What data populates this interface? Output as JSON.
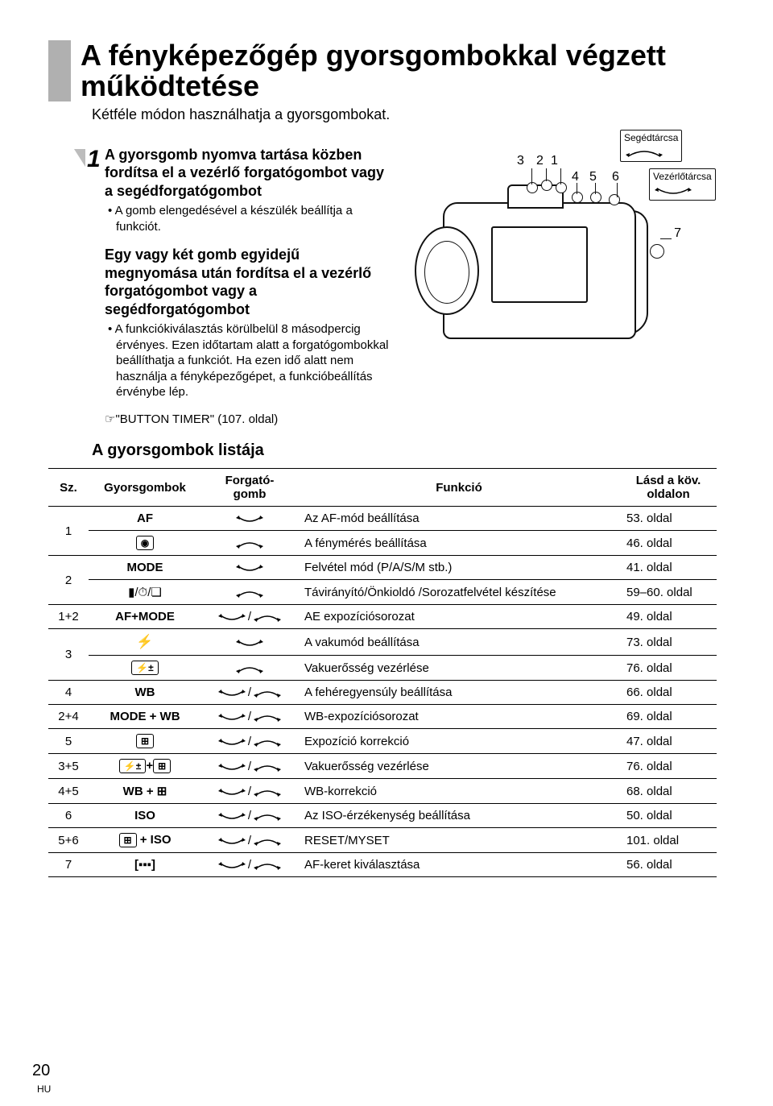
{
  "page": {
    "number": "20",
    "lang": "HU"
  },
  "title": "A fényképezőgép gyorsgombokkal végzett működtetése",
  "subtitle": "Kétféle módon használhatja a gyorsgombokat.",
  "step": {
    "number": "1",
    "h1": "A gyorsgomb nyomva tartása közben fordítsa el a vezérlő forgatógombot vagy a segédforgatógombot",
    "b1": "A gomb elengedésével a készülék beállítja a funkciót.",
    "h2": "Egy vagy két gomb egyidejű megnyomása után fordítsa el a vezérlő forgatógombot vagy a segédforgatógombot",
    "b2": "A funkciókiválasztás körülbelül 8 másodpercig érvényes. Ezen időtartam alatt a forgatógombokkal beállíthatja a funkciót. Ha ezen idő alatt nem használja a fényképezőgépet, a funkcióbeállítás érvénybe lép.",
    "ref": "☞\"BUTTON TIMER\" (107. oldal)"
  },
  "diagram": {
    "callouts": {
      "c1": "1",
      "c2": "2",
      "c3": "3",
      "c4": "4",
      "c5": "5",
      "c6": "6",
      "c7": "7"
    },
    "dial1_label": "Segédtárcsa",
    "dial2_label": "Vezérlőtárcsa"
  },
  "list_title": "A gyorsgombok listája",
  "table": {
    "headers": {
      "sz": "Sz.",
      "btn": "Gyorsgombok",
      "dial": "Forgató-\ngomb",
      "fn": "Funkció",
      "pg": "Lásd a köv. oldalon"
    },
    "rows": [
      {
        "sz": "1",
        "rowspan": 2,
        "btn": "AF",
        "dial": "main",
        "fn": "Az AF-mód beállítása",
        "pg": "53. oldal"
      },
      {
        "btn_icon": "metering",
        "dial": "sub",
        "fn": "A fénymérés beállítása",
        "pg": "46. oldal"
      },
      {
        "sz": "2",
        "rowspan": 2,
        "btn": "MODE",
        "dial": "main",
        "fn": "Felvétel mód (P/A/S/M stb.)",
        "pg": "41. oldal"
      },
      {
        "btn_icon": "remote-timer-drive",
        "dial": "sub",
        "fn": "Távirányító/Önkioldó /Sorozatfelvétel készítése",
        "pg": "59–60. oldal"
      },
      {
        "sz": "1+2",
        "btn": "AF+MODE",
        "dial": "both",
        "fn": "AE expozíciósorozat",
        "pg": "49. oldal"
      },
      {
        "sz": "3",
        "rowspan": 2,
        "btn_icon": "flash",
        "dial": "main",
        "fn": "A vakumód beállítása",
        "pg": "73. oldal"
      },
      {
        "btn_icon": "flash-comp",
        "dial": "sub",
        "fn": "Vakuerősség vezérlése",
        "pg": "76. oldal"
      },
      {
        "sz": "4",
        "btn": "WB",
        "dial": "both",
        "fn": "A fehéregyensúly beállítása",
        "pg": "66. oldal"
      },
      {
        "sz": "2+4",
        "btn": "MODE + WB",
        "dial": "both",
        "fn": "WB-expozíciósorozat",
        "pg": "69. oldal"
      },
      {
        "sz": "5",
        "btn_icon": "exp-comp",
        "dial": "both",
        "fn": "Expozíció korrekció",
        "pg": "47. oldal"
      },
      {
        "sz": "3+5",
        "btn_icon": "flash-comp+exp-comp",
        "dial": "both",
        "fn": "Vakuerősség vezérlése",
        "pg": "76. oldal"
      },
      {
        "sz": "4+5",
        "btn": "WB + ⊞",
        "btn_suffix_icon": "exp-comp",
        "dial": "both",
        "fn": "WB-korrekció",
        "pg": "68. oldal"
      },
      {
        "sz": "6",
        "btn": "ISO",
        "dial": "both",
        "fn": "Az ISO-érzékenység beállítása",
        "pg": "50. oldal"
      },
      {
        "sz": "5+6",
        "btn_icon": "exp-comp",
        "btn_suffix": " + ISO",
        "dial": "both",
        "fn": "RESET/MYSET",
        "pg": "101. oldal"
      },
      {
        "sz": "7",
        "btn_icon": "af-target",
        "dial": "both",
        "fn": "AF-keret kiválasztása",
        "pg": "56. oldal"
      }
    ]
  },
  "colors": {
    "title_bar": "#b0b0b0",
    "text": "#000000",
    "rule": "#000000"
  }
}
